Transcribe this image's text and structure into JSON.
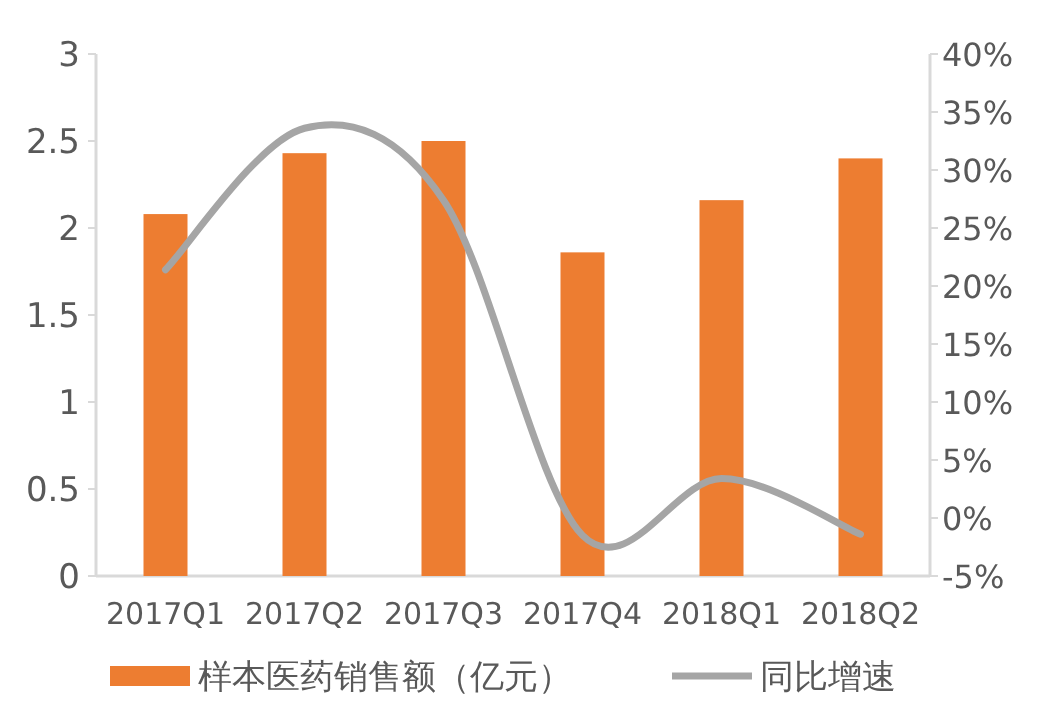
{
  "chart_data": {
    "type": "bar",
    "categories": [
      "2017Q1",
      "2017Q2",
      "2017Q3",
      "2017Q4",
      "2018Q1",
      "2018Q2"
    ],
    "series": [
      {
        "name": "样本医药销售额（亿元）",
        "color": "#ed7d31",
        "values": [
          2.08,
          2.43,
          2.5,
          1.86,
          2.16,
          2.4
        ]
      },
      {
        "name": "同比增速",
        "type": "line",
        "axis": "y2",
        "color": "#a5a5a5",
        "marker": "none",
        "values": [
          21.4,
          33.6,
          27.4,
          -1.5,
          3.4,
          -1.4
        ]
      }
    ],
    "ylim": [
      0,
      3
    ],
    "yticks": [
      0,
      0.5,
      1,
      1.5,
      2,
      2.5,
      3
    ],
    "y2lim": [
      -5,
      40
    ],
    "y2ticks": [
      {
        "value": -5,
        "label": "-5%"
      },
      {
        "value": 0,
        "label": "0%"
      },
      {
        "value": 5,
        "label": "5%"
      },
      {
        "value": 10,
        "label": "10%"
      },
      {
        "value": 15,
        "label": "15%"
      },
      {
        "value": 20,
        "label": "20%"
      },
      {
        "value": 25,
        "label": "25%"
      },
      {
        "value": 30,
        "label": "30%"
      },
      {
        "value": 35,
        "label": "35%"
      },
      {
        "value": 40,
        "label": "40%"
      }
    ],
    "grid": false,
    "legend": "bottom"
  }
}
